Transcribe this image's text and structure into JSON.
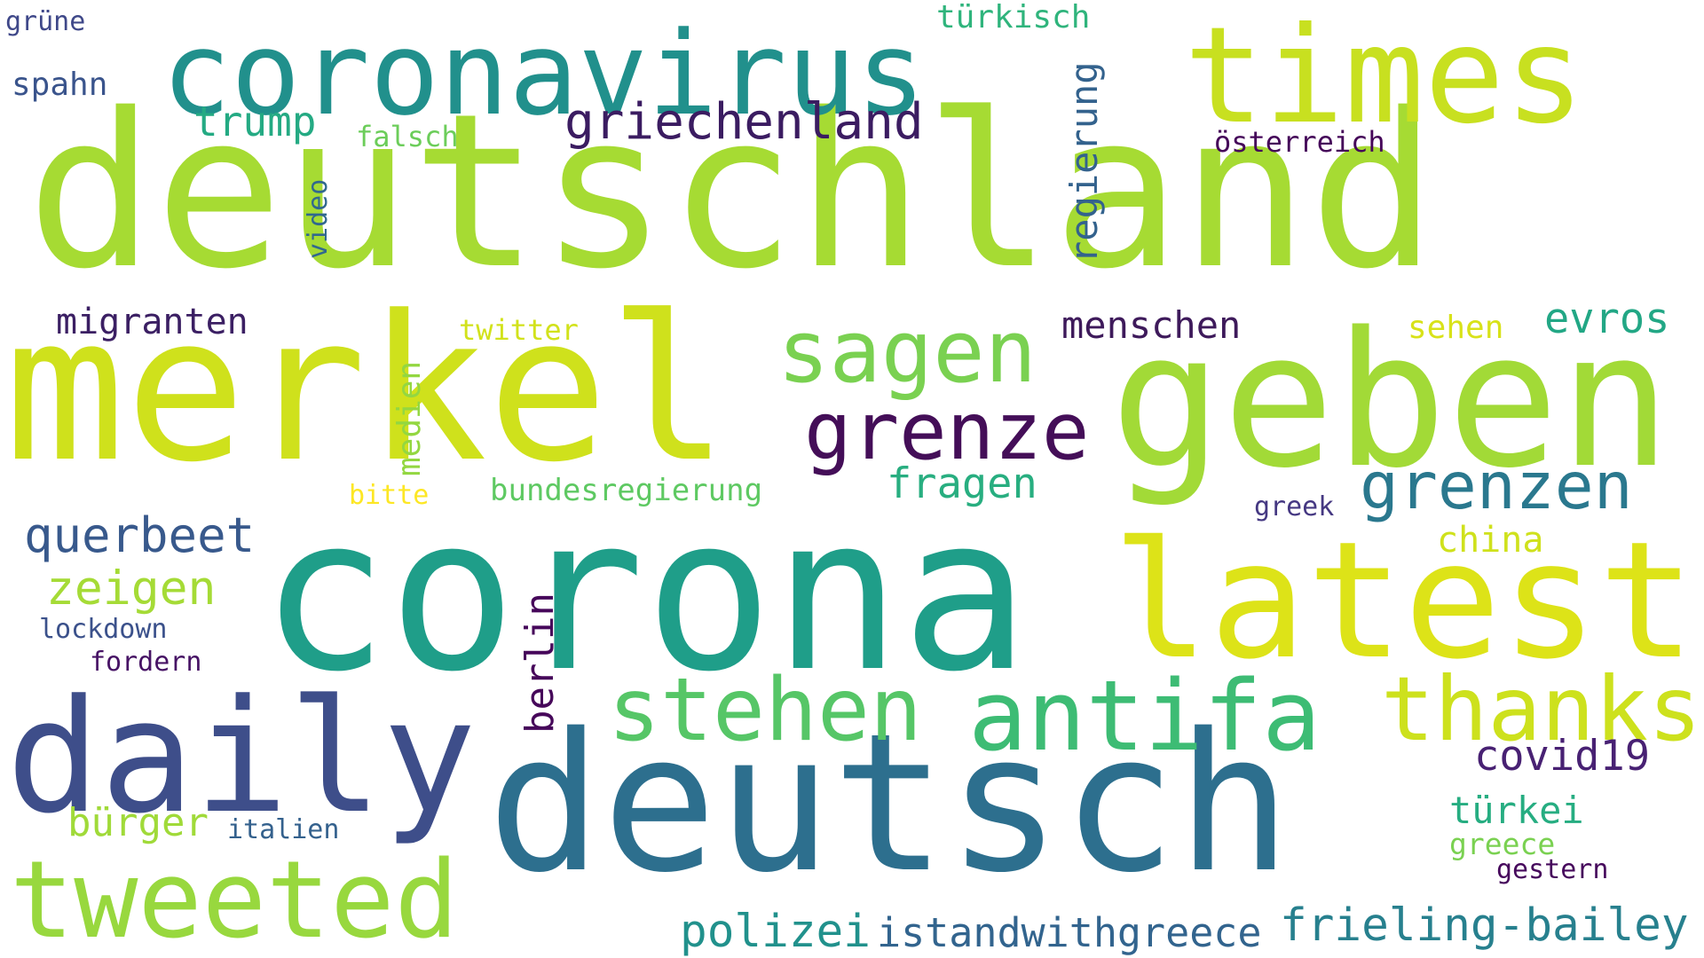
{
  "words": [
    {
      "text": "deutschland",
      "color": "#a6db33",
      "vertical": false
    },
    {
      "text": "corona",
      "color": "#1f9e89",
      "vertical": false
    },
    {
      "text": "merkel",
      "color": "#cfe11c",
      "vertical": false
    },
    {
      "text": "deutsch",
      "color": "#2d6f8e",
      "vertical": false
    },
    {
      "text": "geben",
      "color": "#a2da37",
      "vertical": false
    },
    {
      "text": "coronavirus",
      "color": "#21908c",
      "vertical": false
    },
    {
      "text": "daily",
      "color": "#3e4e8a",
      "vertical": false
    },
    {
      "text": "latest",
      "color": "#dde318",
      "vertical": false
    },
    {
      "text": "times",
      "color": "#c8e020",
      "vertical": false
    },
    {
      "text": "tweeted",
      "color": "#98d83e",
      "vertical": false
    },
    {
      "text": "antifa",
      "color": "#3dbc74",
      "vertical": false
    },
    {
      "text": "stehen",
      "color": "#56c667",
      "vertical": false
    },
    {
      "text": "thanks",
      "color": "#cde11d",
      "vertical": false
    },
    {
      "text": "sagen",
      "color": "#7ad151",
      "vertical": false
    },
    {
      "text": "grenze",
      "color": "#440e58",
      "vertical": false
    },
    {
      "text": "grenzen",
      "color": "#2a788e",
      "vertical": false
    },
    {
      "text": "griechenland",
      "color": "#3b1c61",
      "vertical": false
    },
    {
      "text": "frieling-bailey",
      "color": "#27808e",
      "vertical": false
    },
    {
      "text": "istandwithgreece",
      "color": "#32648e",
      "vertical": false
    },
    {
      "text": "polizei",
      "color": "#21918c",
      "vertical": false
    },
    {
      "text": "querbeet",
      "color": "#38598c",
      "vertical": false
    },
    {
      "text": "zeigen",
      "color": "#a5db36",
      "vertical": false
    },
    {
      "text": "covid19",
      "color": "#482173",
      "vertical": false
    },
    {
      "text": "evros",
      "color": "#22a785",
      "vertical": false
    },
    {
      "text": "fragen",
      "color": "#28ae80",
      "vertical": false
    },
    {
      "text": "trump",
      "color": "#24aa83",
      "vertical": false
    },
    {
      "text": "menschen",
      "color": "#3e1a5b",
      "vertical": false
    },
    {
      "text": "migranten",
      "color": "#3b1f63",
      "vertical": false
    },
    {
      "text": "bürger",
      "color": "#a0da39",
      "vertical": false
    },
    {
      "text": "türkei",
      "color": "#26ad81",
      "vertical": false
    },
    {
      "text": "china",
      "color": "#cfe11c",
      "vertical": false
    },
    {
      "text": "greece",
      "color": "#7ad151",
      "vertical": false
    },
    {
      "text": "türkisch",
      "color": "#2fb47c",
      "vertical": false
    },
    {
      "text": "österreich",
      "color": "#450659",
      "vertical": false
    },
    {
      "text": "bundesregierung",
      "color": "#5ec962",
      "vertical": false
    },
    {
      "text": "sehen",
      "color": "#d8e219",
      "vertical": false
    },
    {
      "text": "spahn",
      "color": "#3a548c",
      "vertical": false
    },
    {
      "text": "falsch",
      "color": "#6ccd5a",
      "vertical": false
    },
    {
      "text": "twitter",
      "color": "#d2e21b",
      "vertical": false
    },
    {
      "text": "lockdown",
      "color": "#3b518b",
      "vertical": false
    },
    {
      "text": "fordern",
      "color": "#471365",
      "vertical": false
    },
    {
      "text": "greek",
      "color": "#453882",
      "vertical": false
    },
    {
      "text": "italien",
      "color": "#34618d",
      "vertical": false
    },
    {
      "text": "gestern",
      "color": "#46085c",
      "vertical": false
    },
    {
      "text": "bitte",
      "color": "#fde725",
      "vertical": false
    },
    {
      "text": "grüne",
      "color": "#3f4889",
      "vertical": false
    },
    {
      "text": "berlin",
      "color": "#46075a",
      "vertical": true
    },
    {
      "text": "medien",
      "color": "#93d741",
      "vertical": true
    },
    {
      "text": "regierung",
      "color": "#33628d",
      "vertical": true
    },
    {
      "text": "video",
      "color": "#31688e",
      "vertical": true
    }
  ]
}
